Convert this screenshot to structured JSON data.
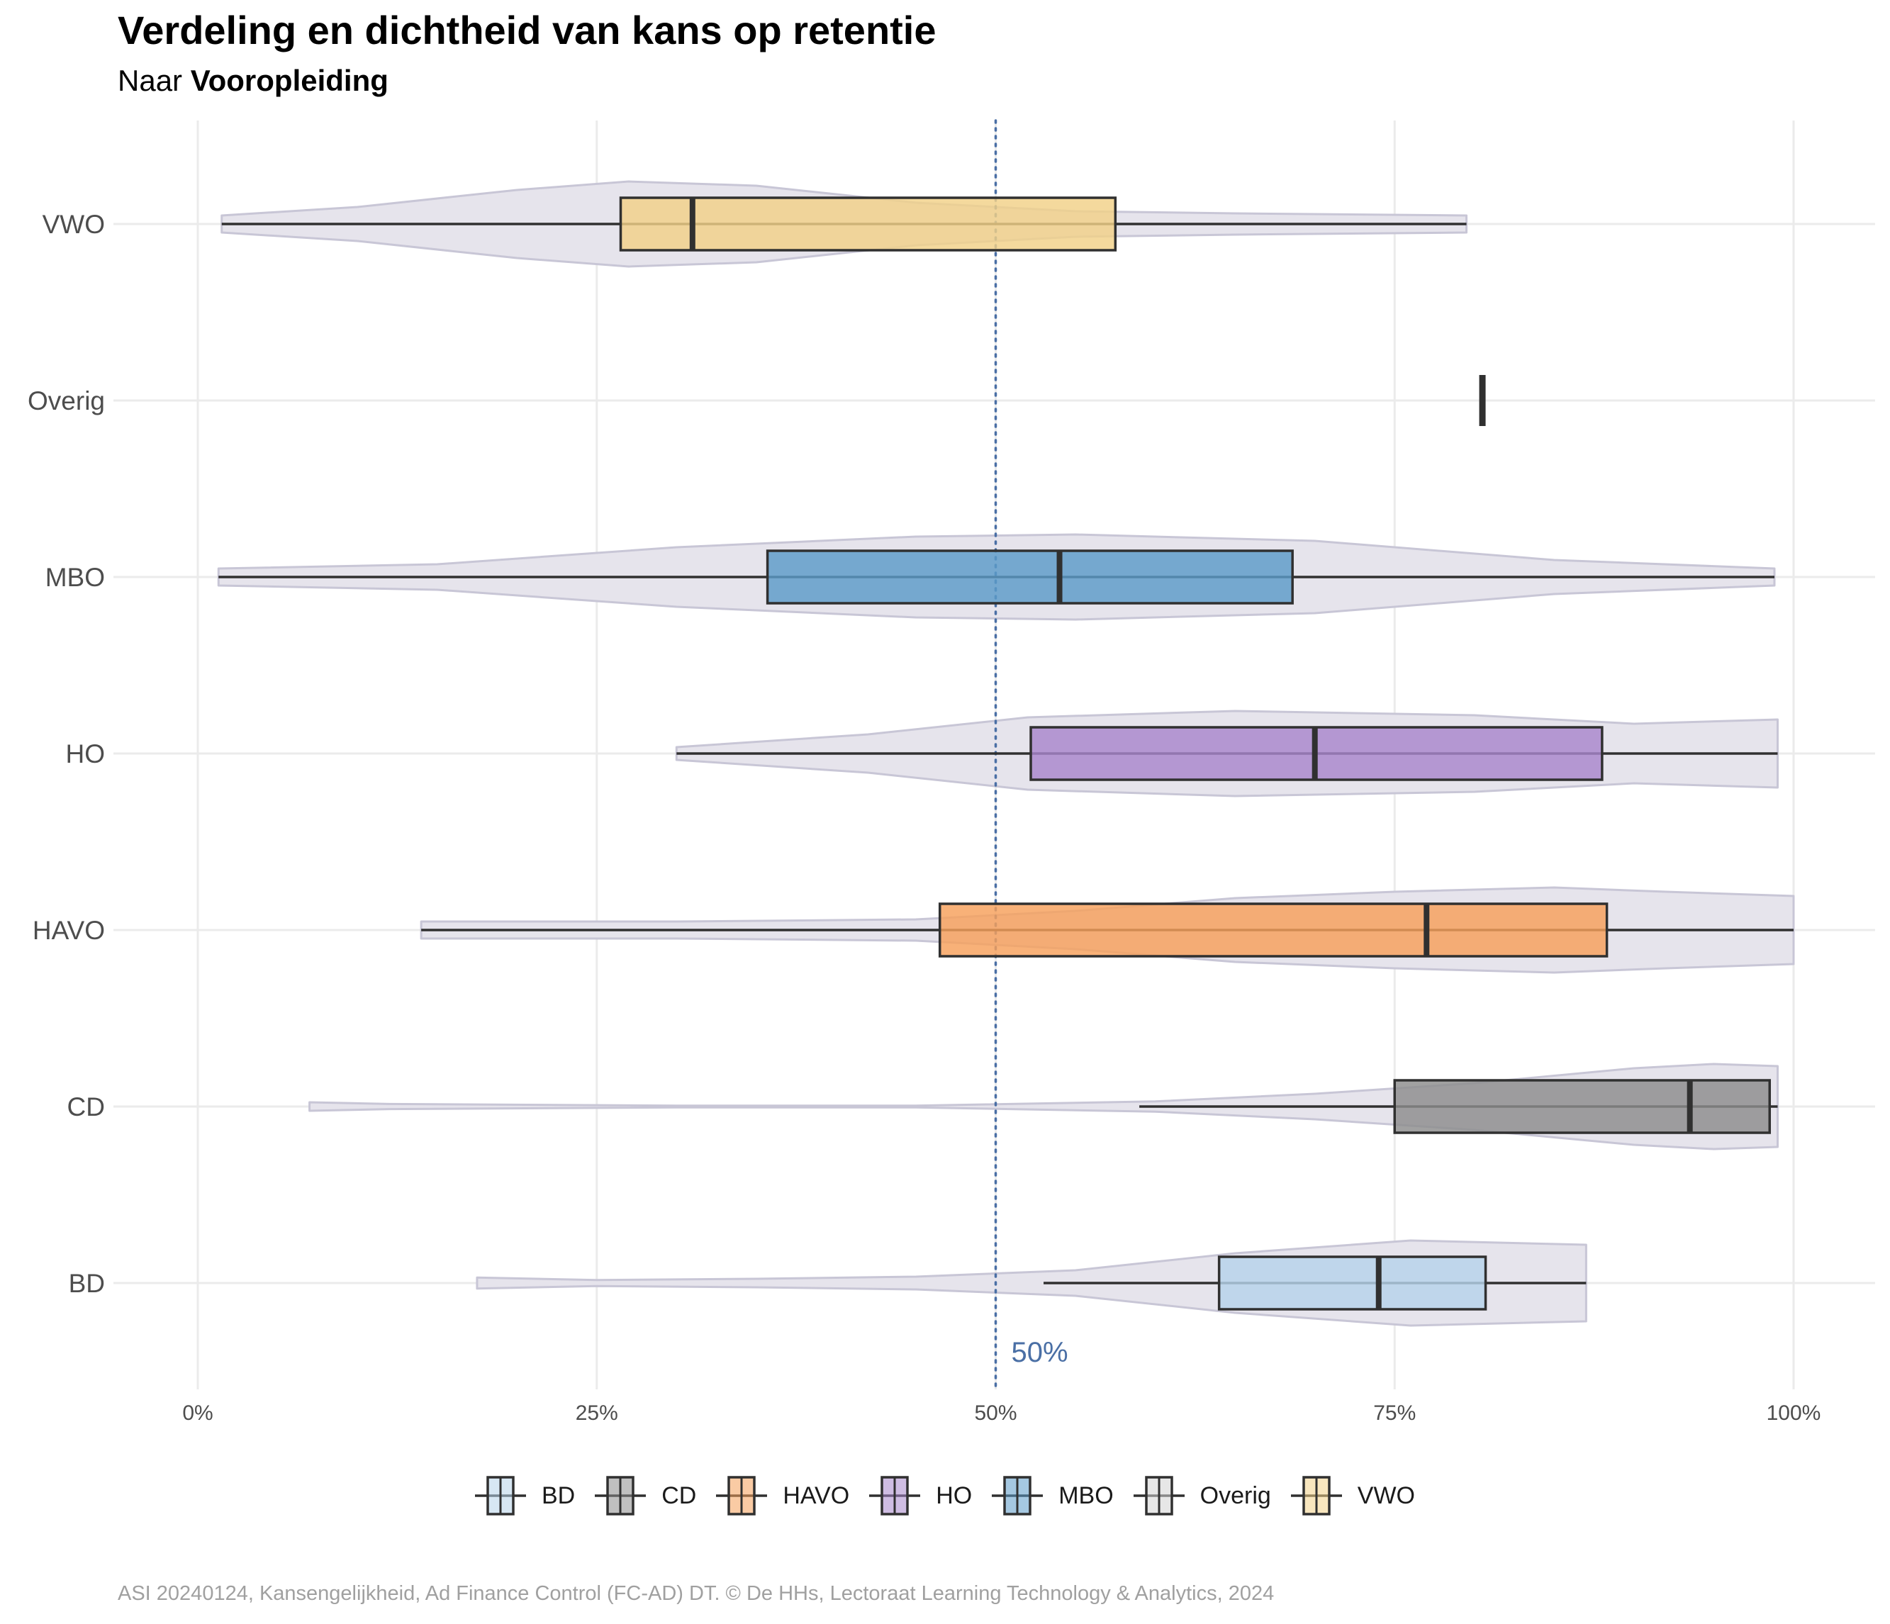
{
  "title": "Verdeling en dichtheid van kans op retentie",
  "subtitle": {
    "prefix": "Naar ",
    "emphasis": "Vooropleiding"
  },
  "caption": "ASI 20240124, Kansengelijkheid, Ad Finance Control (FC-AD) DT. © De HHs, Lectoraat Learning Technology & Analytics, 2024",
  "chart_data": {
    "type": "violin-boxplot",
    "orientation": "horizontal",
    "x_axis": {
      "range": [
        0,
        100
      ],
      "ticks": [
        0,
        25,
        50,
        75,
        100
      ],
      "tick_labels": [
        "0%",
        "25%",
        "50%",
        "75%",
        "100%"
      ]
    },
    "y_categories": [
      "VWO",
      "Overig",
      "MBO",
      "HO",
      "HAVO",
      "CD",
      "BD"
    ],
    "reference_line": {
      "x": 50,
      "label": "50%",
      "color": "#4a6fa5"
    },
    "grid": true,
    "legend_position": "bottom",
    "series": [
      {
        "name": "VWO",
        "color": "#f2d188",
        "whisker": [
          1.5,
          79.5
        ],
        "q1": 26.5,
        "median": 31,
        "q3": 57.5,
        "violin": [
          [
            1.5,
            0.2
          ],
          [
            10,
            0.4
          ],
          [
            20,
            0.8
          ],
          [
            27,
            1.0
          ],
          [
            35,
            0.9
          ],
          [
            45,
            0.5
          ],
          [
            55,
            0.3
          ],
          [
            65,
            0.25
          ],
          [
            79.5,
            0.2
          ]
        ]
      },
      {
        "name": "Overig",
        "color": "#d3d3d3",
        "whisker": [
          80.5,
          80.5
        ],
        "q1": 80.5,
        "median": 80.5,
        "q3": 80.5,
        "violin": []
      },
      {
        "name": "MBO",
        "color": "#5b9bc8",
        "whisker": [
          1.3,
          98.8
        ],
        "q1": 35.7,
        "median": 54,
        "q3": 68.6,
        "violin": [
          [
            1.3,
            0.2
          ],
          [
            15,
            0.3
          ],
          [
            30,
            0.7
          ],
          [
            45,
            0.95
          ],
          [
            55,
            1.0
          ],
          [
            70,
            0.85
          ],
          [
            85,
            0.4
          ],
          [
            98.8,
            0.2
          ]
        ]
      },
      {
        "name": "HO",
        "color": "#a886cc",
        "whisker": [
          30,
          99
        ],
        "q1": 52.2,
        "median": 70,
        "q3": 88,
        "violin": [
          [
            30,
            0.15
          ],
          [
            42,
            0.45
          ],
          [
            52,
            0.85
          ],
          [
            65,
            1.0
          ],
          [
            80,
            0.9
          ],
          [
            90,
            0.7
          ],
          [
            99,
            0.8
          ]
        ]
      },
      {
        "name": "HAVO",
        "color": "#f6a05a",
        "whisker": [
          14,
          100
        ],
        "q1": 46.5,
        "median": 77,
        "q3": 88.3,
        "violin": [
          [
            14,
            0.2
          ],
          [
            30,
            0.2
          ],
          [
            45,
            0.25
          ],
          [
            55,
            0.45
          ],
          [
            65,
            0.75
          ],
          [
            75,
            0.9
          ],
          [
            85,
            1.0
          ],
          [
            92,
            0.9
          ],
          [
            100,
            0.8
          ]
        ]
      },
      {
        "name": "CD",
        "color": "#8c8c8c",
        "whisker": [
          59,
          99
        ],
        "q1": 75,
        "median": 93.5,
        "q3": 98.5,
        "violin": [
          [
            7,
            0.1
          ],
          [
            12,
            0.06
          ],
          [
            30,
            0.02
          ],
          [
            45,
            0.02
          ],
          [
            60,
            0.12
          ],
          [
            70,
            0.3
          ],
          [
            80,
            0.55
          ],
          [
            90,
            0.9
          ],
          [
            95,
            1.0
          ],
          [
            99,
            0.95
          ]
        ]
      },
      {
        "name": "BD",
        "color": "#b6d3ea",
        "whisker": [
          53,
          87
        ],
        "q1": 64,
        "median": 74,
        "q3": 80.7,
        "violin": [
          [
            17.5,
            0.13
          ],
          [
            25,
            0.07
          ],
          [
            35,
            0.1
          ],
          [
            45,
            0.15
          ],
          [
            55,
            0.3
          ],
          [
            65,
            0.7
          ],
          [
            76,
            1.0
          ],
          [
            87,
            0.9
          ]
        ]
      }
    ],
    "legend_order": [
      "BD",
      "CD",
      "HAVO",
      "HO",
      "MBO",
      "Overig",
      "VWO"
    ]
  }
}
